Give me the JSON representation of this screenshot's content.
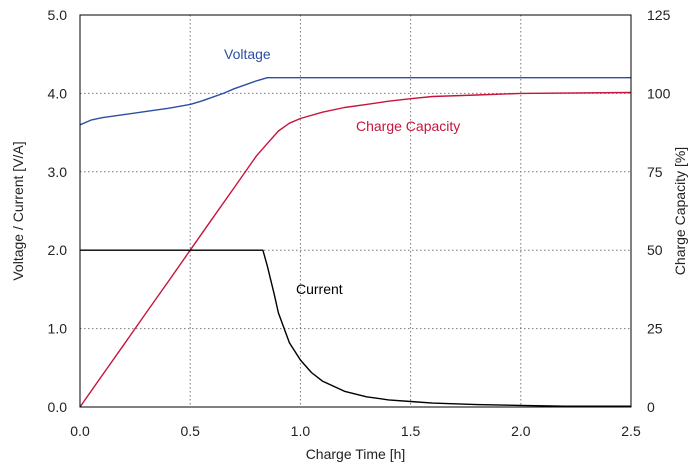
{
  "chart_data": {
    "type": "line",
    "title": "",
    "xlabel": "Charge Time [h]",
    "ylabel": "Voltage / Current [V/A]",
    "y2label": "Charge Capacity [%]",
    "xlim": [
      0,
      2.5
    ],
    "ylim": [
      0,
      5
    ],
    "y2lim": [
      0,
      125
    ],
    "x_ticks": [
      "0.0",
      "0.5",
      "1.0",
      "1.5",
      "2.0",
      "2.5"
    ],
    "y_ticks": [
      "0.0",
      "1.0",
      "2.0",
      "3.0",
      "4.0",
      "5.0"
    ],
    "y2_ticks": [
      "0",
      "25",
      "50",
      "75",
      "100",
      "125"
    ],
    "grid": true,
    "series": [
      {
        "name": "Voltage",
        "axis": "left",
        "color": "#2c4fa3",
        "x": [
          0,
          0.05,
          0.1,
          0.2,
          0.3,
          0.4,
          0.5,
          0.55,
          0.6,
          0.65,
          0.7,
          0.75,
          0.8,
          0.85,
          0.9,
          1.0,
          1.5,
          2.0,
          2.5
        ],
        "y": [
          3.6,
          3.66,
          3.69,
          3.73,
          3.77,
          3.81,
          3.86,
          3.9,
          3.95,
          4.0,
          4.06,
          4.11,
          4.16,
          4.2,
          4.2,
          4.2,
          4.2,
          4.2,
          4.2
        ]
      },
      {
        "name": "Charge Capacity",
        "axis": "right",
        "color": "#c8143c",
        "x": [
          0,
          0.1,
          0.2,
          0.3,
          0.4,
          0.5,
          0.6,
          0.7,
          0.8,
          0.85,
          0.9,
          0.95,
          1.0,
          1.1,
          1.2,
          1.3,
          1.4,
          1.5,
          1.6,
          1.8,
          2.0,
          2.5
        ],
        "y": [
          0,
          10,
          20,
          30,
          40,
          50,
          60,
          70,
          80,
          84,
          88,
          90.5,
          92,
          94,
          95.5,
          96.5,
          97.5,
          98.3,
          99,
          99.5,
          100,
          100.3
        ]
      },
      {
        "name": "Current",
        "axis": "left",
        "color": "#000000",
        "x": [
          0,
          0.5,
          0.83,
          0.85,
          0.88,
          0.9,
          0.95,
          1.0,
          1.05,
          1.1,
          1.2,
          1.3,
          1.4,
          1.5,
          1.6,
          1.8,
          2.0,
          2.2,
          2.5
        ],
        "y": [
          2.0,
          2.0,
          2.0,
          1.8,
          1.45,
          1.2,
          0.82,
          0.6,
          0.44,
          0.33,
          0.2,
          0.13,
          0.09,
          0.07,
          0.05,
          0.03,
          0.02,
          0.01,
          0.01
        ]
      }
    ]
  }
}
